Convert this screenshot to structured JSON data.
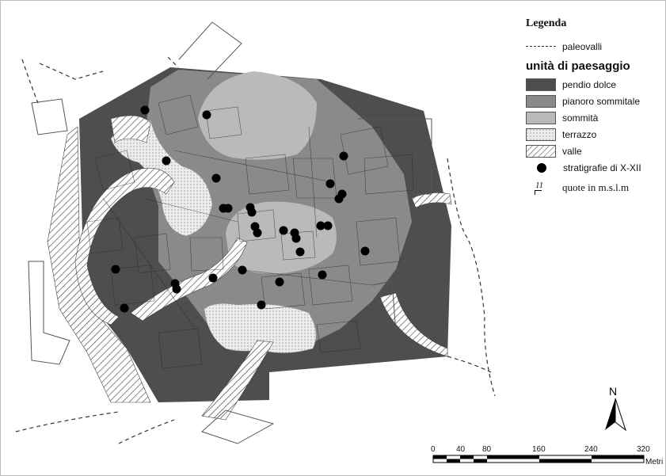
{
  "legend": {
    "title": "Legenda",
    "paleovalli": "paleovalli",
    "subtitle": "unità di paesaggio",
    "units": [
      {
        "label": "pendio dolce",
        "color": "#4d4d4d"
      },
      {
        "label": "pianoro sommitale",
        "color": "#8a8a8a"
      },
      {
        "label": "sommità",
        "color": "#b9b9b9"
      },
      {
        "label": "terrazzo",
        "color": "#e9e9e9"
      },
      {
        "label": "valle",
        "color": "#ffffff"
      }
    ],
    "stratigrafie": "stratigrafie di X-XII",
    "quote_symbol": "11",
    "quote_label": "quote  in m.s.l.m"
  },
  "north": "N",
  "scale": {
    "ticks": [
      "0",
      "40",
      "80",
      "160",
      "240",
      "320"
    ],
    "unit": "Metri"
  }
}
